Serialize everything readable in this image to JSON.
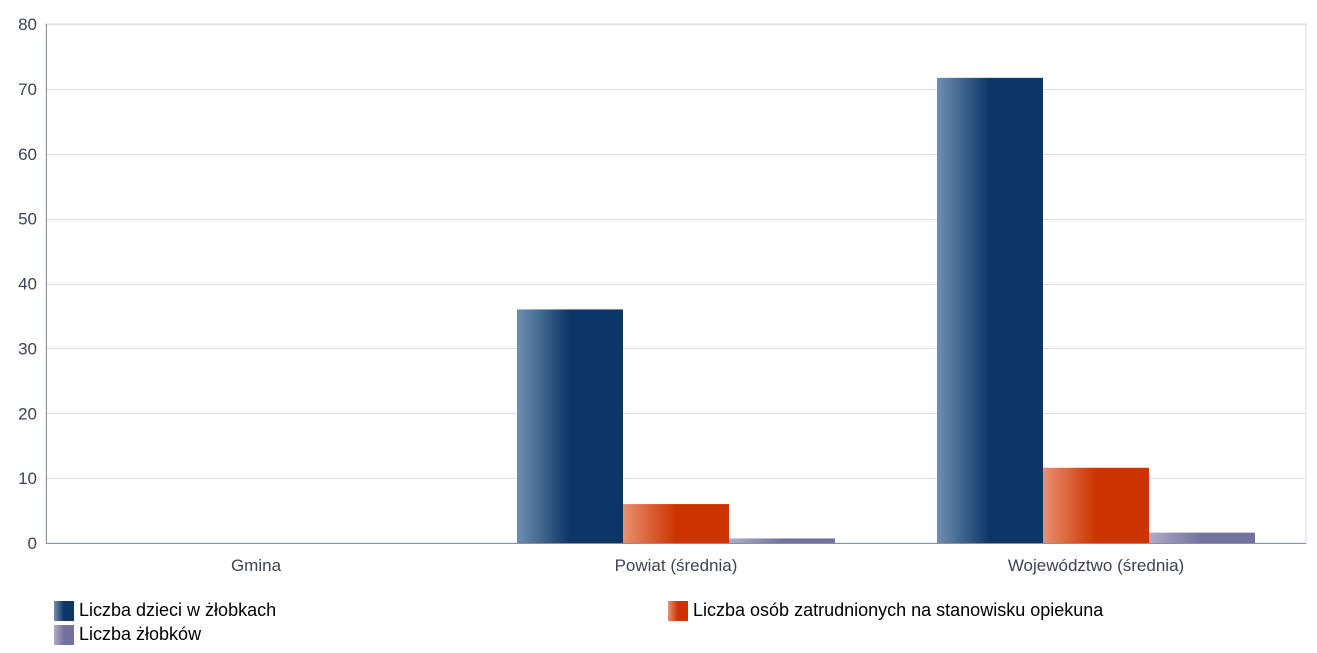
{
  "chart_data": {
    "type": "bar",
    "categories": [
      "Gmina",
      "Powiat (średnia)",
      "Województwo (średnia)"
    ],
    "series": [
      {
        "name": "Liczba dzieci w żłobkach",
        "values": [
          0,
          36,
          71.7
        ],
        "color": "#0b3666"
      },
      {
        "name": "Liczba osób zatrudnionych na stanowisku opiekuna",
        "values": [
          0,
          6,
          11.6
        ],
        "color": "#cc3300"
      },
      {
        "name": "Liczba żłobków",
        "values": [
          0,
          0.7,
          1.6
        ],
        "color": "#74719e"
      }
    ],
    "yticks": [
      "0",
      "10",
      "20",
      "30",
      "40",
      "50",
      "60",
      "70",
      "80"
    ],
    "ylim": [
      0,
      80
    ],
    "grid": true,
    "legend_position": "bottom"
  }
}
